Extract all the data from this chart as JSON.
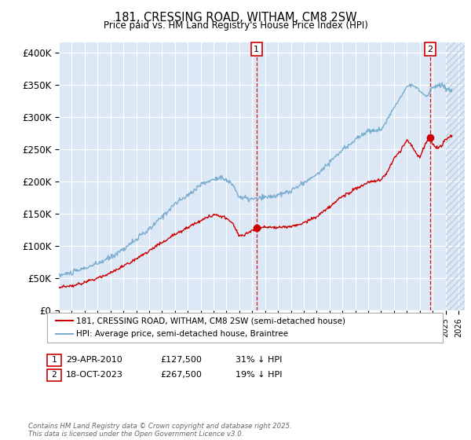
{
  "title": "181, CRESSING ROAD, WITHAM, CM8 2SW",
  "subtitle": "Price paid vs. HM Land Registry's House Price Index (HPI)",
  "ylabel_ticks": [
    "£0",
    "£50K",
    "£100K",
    "£150K",
    "£200K",
    "£250K",
    "£300K",
    "£350K",
    "£400K"
  ],
  "ytick_values": [
    0,
    50000,
    100000,
    150000,
    200000,
    250000,
    300000,
    350000,
    400000
  ],
  "ylim": [
    0,
    415000
  ],
  "xlim_start": 1995.0,
  "xlim_end": 2026.5,
  "legend_label_red": "181, CRESSING ROAD, WITHAM, CM8 2SW (semi-detached house)",
  "legend_label_blue": "HPI: Average price, semi-detached house, Braintree",
  "marker1_year": 2010.33,
  "marker1_value": 127500,
  "marker1_label": "1",
  "marker2_year": 2023.79,
  "marker2_value": 267500,
  "marker2_label": "2",
  "footer": "Contains HM Land Registry data © Crown copyright and database right 2025.\nThis data is licensed under the Open Government Licence v3.0.",
  "red_color": "#cc0000",
  "blue_color": "#7aadcf",
  "dashed_color": "#cc0000",
  "bg_color": "#dce8f5",
  "grid_color": "#ffffff",
  "hatch_color": "#c0cfe0"
}
